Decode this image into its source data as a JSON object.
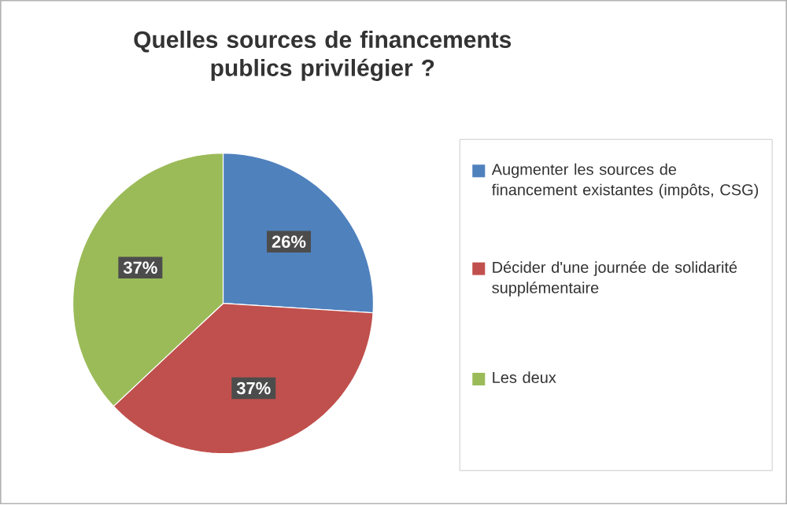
{
  "chart_data": {
    "type": "pie",
    "title": "Quelles sources de financements publics privilégier ?",
    "categories": [
      "Augmenter les sources de financement existantes (impôts, CSG)",
      "Décider d'une journée de solidarité supplémentaire",
      "Les deux"
    ],
    "values": [
      26,
      37,
      37
    ],
    "colors": [
      "#4f81bd",
      "#c0504d",
      "#9bbb59"
    ],
    "value_labels": [
      "26%",
      "37%",
      "37%"
    ],
    "legend": "right"
  }
}
